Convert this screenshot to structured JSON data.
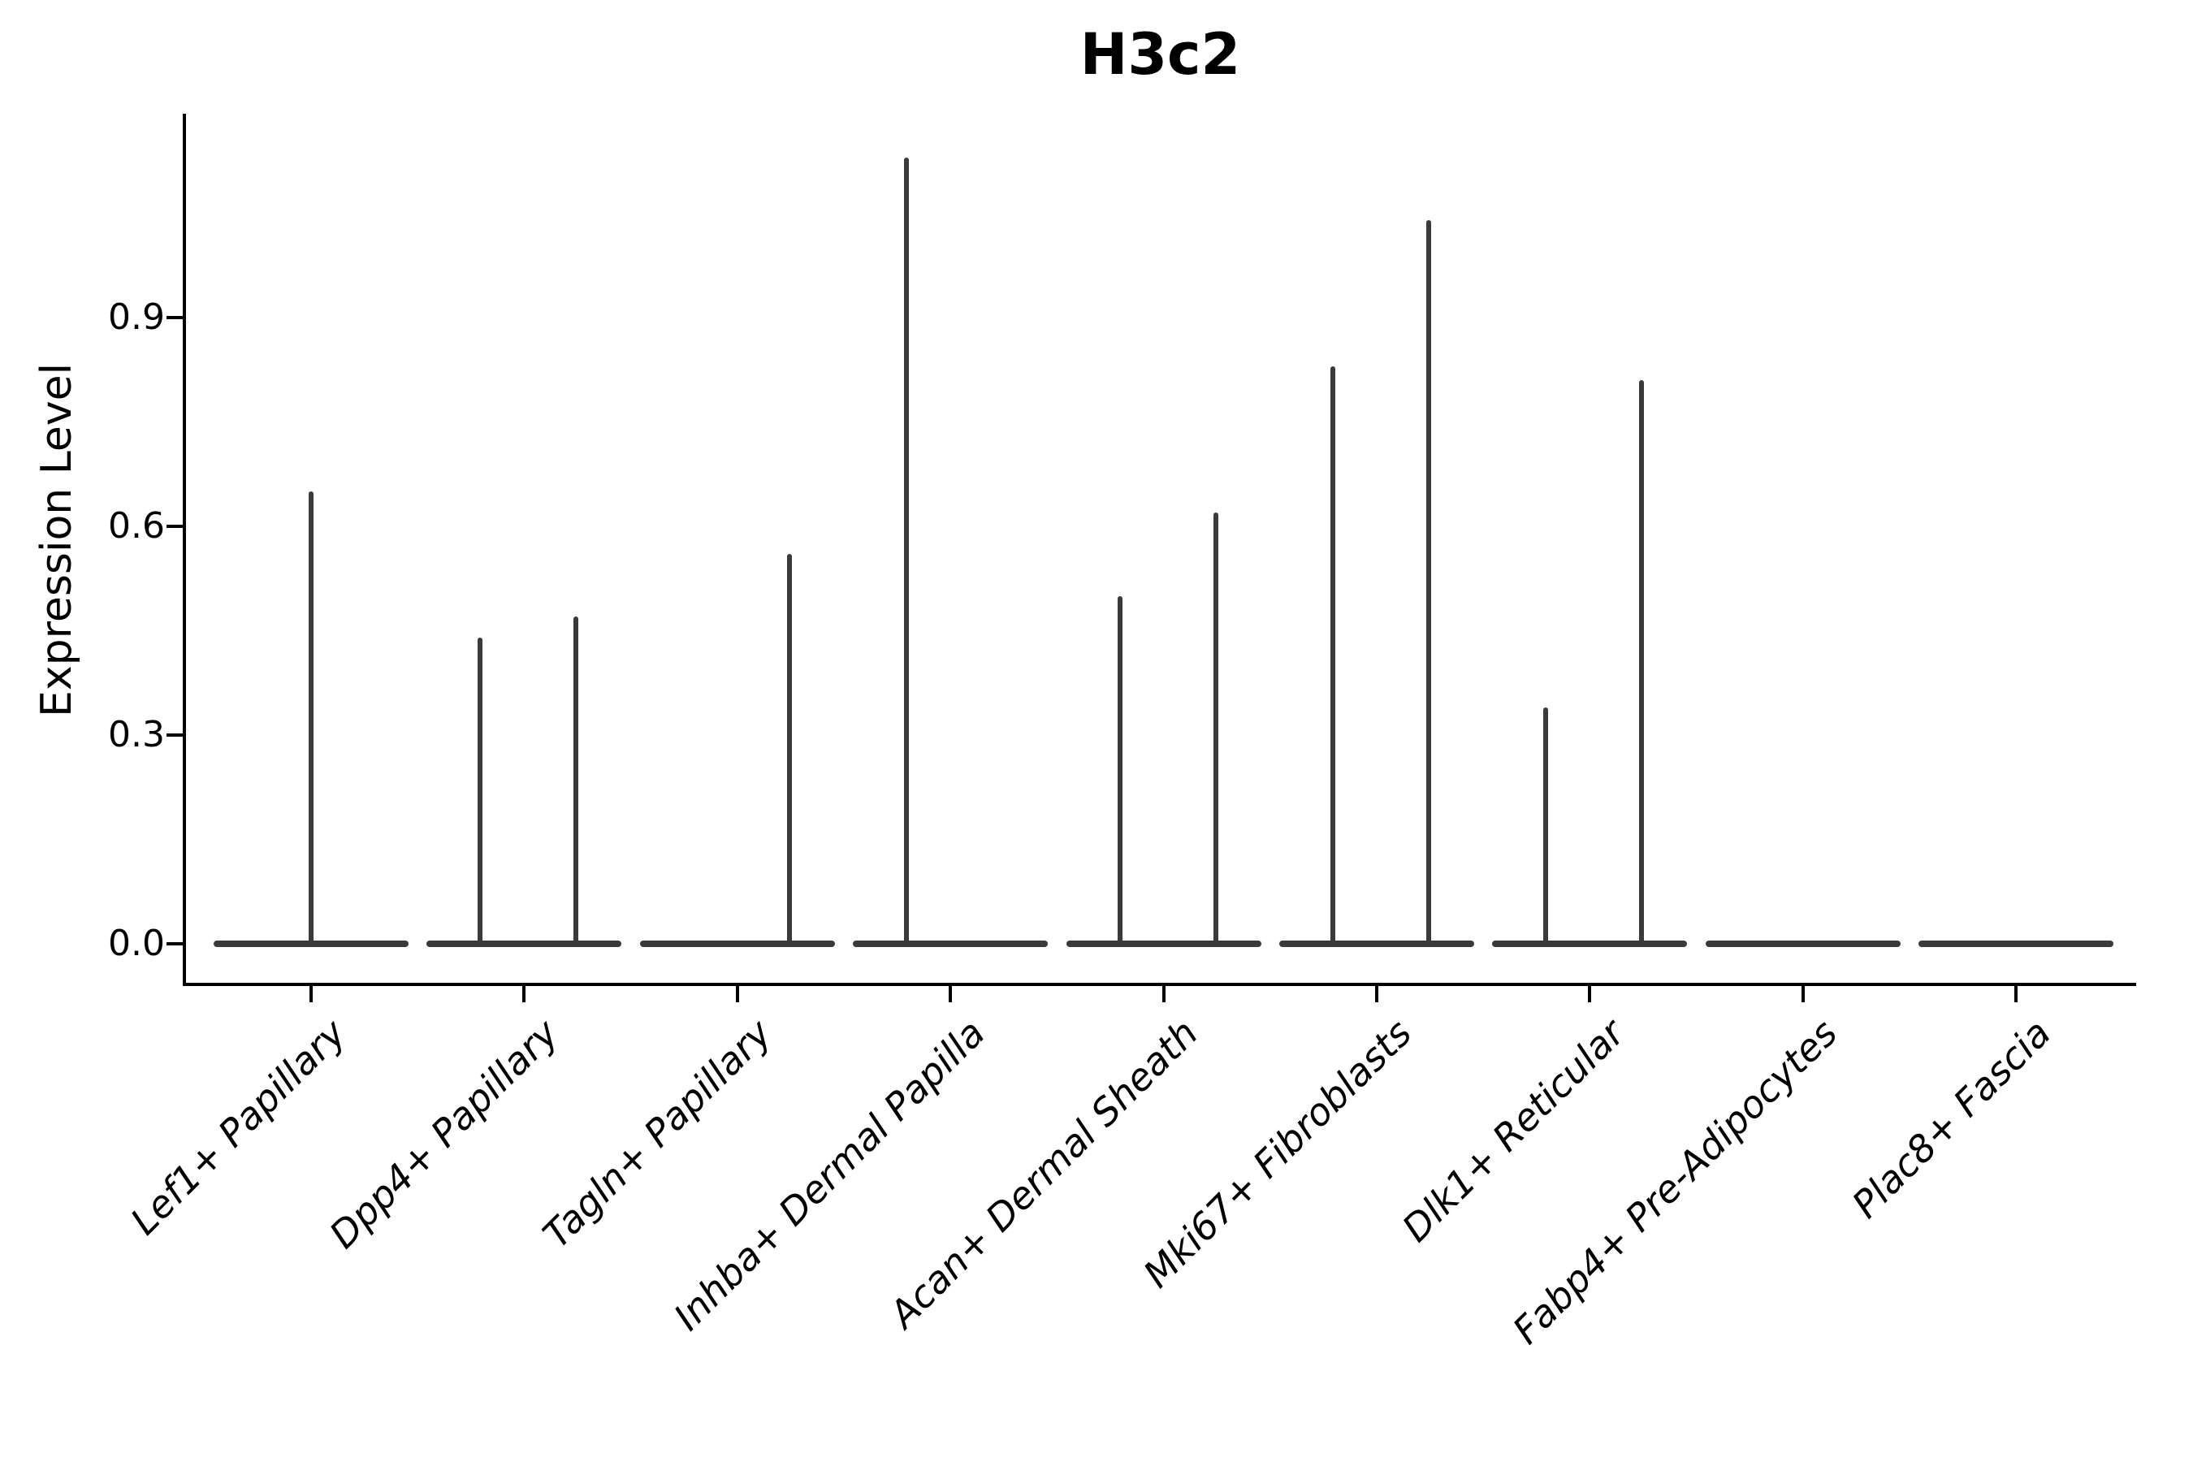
{
  "title": "H3c2",
  "axes": {
    "ylabel": "Expression Level",
    "ytick_labels": [
      "0.0",
      "0.3",
      "0.6",
      "0.9"
    ]
  },
  "chart_data": {
    "type": "violin",
    "title": "H3c2",
    "xlabel": "",
    "ylabel": "Expression Level",
    "ylim": [
      -0.06,
      1.19
    ],
    "ytick_values": [
      0.0,
      0.3,
      0.6,
      0.9
    ],
    "grid": false,
    "legend": false,
    "x_tick_rotation_deg": 45,
    "x_tick_style": "italic",
    "description": "Single-cell gene expression violin plot for H3c2. Each violin is collapsed flat at expression 0 (most cells do not express the gene) with a thin vertical spike reaching the maximum expression value; some cell types show two side-by-side spikes (two dodged violins), others a single centered one, and some show no expression at all.",
    "categories": [
      {
        "label": "Lef1+ Papillary",
        "violins": [
          {
            "slot": "full",
            "max_expression": 0.65
          }
        ]
      },
      {
        "label": "Dpp4+ Papillary",
        "violins": [
          {
            "slot": "left",
            "max_expression": 0.44
          },
          {
            "slot": "right",
            "max_expression": 0.47
          }
        ]
      },
      {
        "label": "Tagln+ Papillary",
        "violins": [
          {
            "slot": "right",
            "max_expression": 0.56
          }
        ]
      },
      {
        "label": "Inhba+ Dermal Papilla",
        "violins": [
          {
            "slot": "left",
            "max_expression": 1.13
          }
        ]
      },
      {
        "label": "Acan+ Dermal Sheath",
        "violins": [
          {
            "slot": "left",
            "max_expression": 0.5
          },
          {
            "slot": "right",
            "max_expression": 0.62
          }
        ]
      },
      {
        "label": "Mki67+ Fibroblasts",
        "violins": [
          {
            "slot": "left",
            "max_expression": 0.83
          },
          {
            "slot": "right",
            "max_expression": 1.04
          }
        ]
      },
      {
        "label": "Dlk1+ Reticular",
        "violins": [
          {
            "slot": "left",
            "max_expression": 0.34
          },
          {
            "slot": "right",
            "max_expression": 0.81
          }
        ]
      },
      {
        "label": "Fabp4+ Pre-Adipocytes",
        "violins": []
      },
      {
        "label": "Plac8+ Fascia",
        "violins": []
      }
    ],
    "colors": {
      "violin_stroke": "#3a3a3a",
      "axis": "#000000",
      "text": "#000000",
      "background": "#ffffff"
    }
  }
}
